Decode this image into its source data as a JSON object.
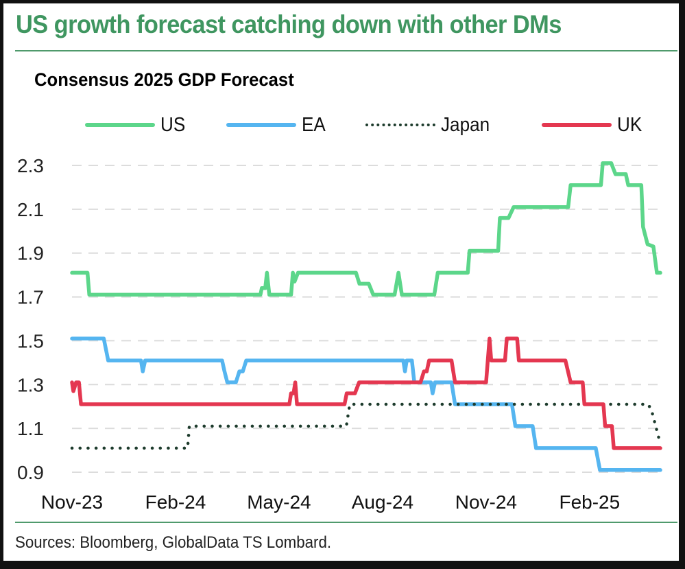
{
  "header": {
    "title": "US growth forecast catching down with other DMs",
    "subtitle": "Consensus 2025 GDP Forecast"
  },
  "footer": {
    "source": "Sources: Bloomberg, GlobalData TS Lombard."
  },
  "colors": {
    "title": "#3f9660",
    "rule": "#4f9a6c",
    "gridline": "#dcdcdc"
  },
  "chart_data": {
    "type": "line",
    "title": "Consensus 2025 GDP Forecast",
    "xlabel": "",
    "ylabel": "",
    "x_unit": "months since Nov-23",
    "xlim": [
      0,
      17.05
    ],
    "ylim": [
      0.9,
      2.3
    ],
    "yticks": [
      0.9,
      1.1,
      1.3,
      1.5,
      1.7,
      1.9,
      2.1,
      2.3
    ],
    "ytick_labels": [
      "0.9",
      "1.1",
      "1.3",
      "1.5",
      "1.7",
      "1.9",
      "2.1",
      "2.3"
    ],
    "xticks": [
      0,
      3,
      6,
      9,
      12,
      15
    ],
    "xtick_labels": [
      "Nov-23",
      "Feb-24",
      "May-24",
      "Aug-24",
      "Nov-24",
      "Feb-25"
    ],
    "grid": "horizontal-dashed",
    "legend_position": "top",
    "series": [
      {
        "name": "US",
        "color": "#5cd68a",
        "style": "solid",
        "points": [
          [
            0,
            1.81
          ],
          [
            0.45,
            1.81
          ],
          [
            0.5,
            1.71
          ],
          [
            5.46,
            1.71
          ],
          [
            5.5,
            1.74
          ],
          [
            5.6,
            1.74
          ],
          [
            5.65,
            1.81
          ],
          [
            5.72,
            1.71
          ],
          [
            6.35,
            1.71
          ],
          [
            6.4,
            1.81
          ],
          [
            6.45,
            1.77
          ],
          [
            6.55,
            1.81
          ],
          [
            8.23,
            1.81
          ],
          [
            8.33,
            1.76
          ],
          [
            8.6,
            1.76
          ],
          [
            8.73,
            1.71
          ],
          [
            9.35,
            1.71
          ],
          [
            9.46,
            1.81
          ],
          [
            9.56,
            1.71
          ],
          [
            10.5,
            1.71
          ],
          [
            10.6,
            1.81
          ],
          [
            11.47,
            1.81
          ],
          [
            11.52,
            1.91
          ],
          [
            12.35,
            1.91
          ],
          [
            12.4,
            2.06
          ],
          [
            12.65,
            2.06
          ],
          [
            12.8,
            2.11
          ],
          [
            14.38,
            2.11
          ],
          [
            14.45,
            2.21
          ],
          [
            15.33,
            2.21
          ],
          [
            15.38,
            2.31
          ],
          [
            15.63,
            2.31
          ],
          [
            15.75,
            2.26
          ],
          [
            16.05,
            2.26
          ],
          [
            16.12,
            2.21
          ],
          [
            16.5,
            2.21
          ],
          [
            16.55,
            2.02
          ],
          [
            16.68,
            1.94
          ],
          [
            16.85,
            1.93
          ],
          [
            16.95,
            1.81
          ],
          [
            17.05,
            1.81
          ]
        ]
      },
      {
        "name": "EA",
        "color": "#55b5f0",
        "style": "solid",
        "points": [
          [
            0,
            1.51
          ],
          [
            0.92,
            1.51
          ],
          [
            1.05,
            1.41
          ],
          [
            2.0,
            1.41
          ],
          [
            2.05,
            1.36
          ],
          [
            2.12,
            1.41
          ],
          [
            4.35,
            1.41
          ],
          [
            4.42,
            1.36
          ],
          [
            4.5,
            1.31
          ],
          [
            4.75,
            1.31
          ],
          [
            4.85,
            1.36
          ],
          [
            4.95,
            1.36
          ],
          [
            5.05,
            1.41
          ],
          [
            9.6,
            1.41
          ],
          [
            9.65,
            1.36
          ],
          [
            9.7,
            1.41
          ],
          [
            9.85,
            1.41
          ],
          [
            9.92,
            1.31
          ],
          [
            10.4,
            1.31
          ],
          [
            10.45,
            1.26
          ],
          [
            10.52,
            1.31
          ],
          [
            11.0,
            1.31
          ],
          [
            11.1,
            1.21
          ],
          [
            12.75,
            1.21
          ],
          [
            12.85,
            1.11
          ],
          [
            13.35,
            1.11
          ],
          [
            13.45,
            1.01
          ],
          [
            15.18,
            1.01
          ],
          [
            15.3,
            0.91
          ],
          [
            17.05,
            0.91
          ]
        ]
      },
      {
        "name": "Japan",
        "color": "#1d3b2c",
        "style": "dotted",
        "points": [
          [
            0,
            1.01
          ],
          [
            3.35,
            1.01
          ],
          [
            3.4,
            1.11
          ],
          [
            7.95,
            1.11
          ],
          [
            8.05,
            1.21
          ],
          [
            16.7,
            1.21
          ],
          [
            16.8,
            1.18
          ],
          [
            16.9,
            1.12
          ],
          [
            17.0,
            1.06
          ],
          [
            17.05,
            1.03
          ]
        ]
      },
      {
        "name": "UK",
        "color": "#e43750",
        "style": "solid",
        "points": [
          [
            0,
            1.31
          ],
          [
            0.04,
            1.27
          ],
          [
            0.12,
            1.31
          ],
          [
            0.2,
            1.31
          ],
          [
            0.26,
            1.21
          ],
          [
            6.3,
            1.21
          ],
          [
            6.35,
            1.26
          ],
          [
            6.42,
            1.26
          ],
          [
            6.47,
            1.31
          ],
          [
            6.52,
            1.21
          ],
          [
            7.9,
            1.21
          ],
          [
            7.96,
            1.26
          ],
          [
            8.2,
            1.26
          ],
          [
            8.32,
            1.31
          ],
          [
            10.1,
            1.31
          ],
          [
            10.2,
            1.36
          ],
          [
            10.28,
            1.36
          ],
          [
            10.35,
            1.41
          ],
          [
            11.0,
            1.41
          ],
          [
            11.1,
            1.31
          ],
          [
            12.0,
            1.31
          ],
          [
            12.1,
            1.51
          ],
          [
            12.15,
            1.41
          ],
          [
            12.55,
            1.41
          ],
          [
            12.6,
            1.51
          ],
          [
            12.9,
            1.51
          ],
          [
            12.95,
            1.41
          ],
          [
            14.3,
            1.41
          ],
          [
            14.45,
            1.31
          ],
          [
            14.8,
            1.31
          ],
          [
            14.85,
            1.21
          ],
          [
            15.4,
            1.21
          ],
          [
            15.45,
            1.11
          ],
          [
            15.65,
            1.11
          ],
          [
            15.7,
            1.01
          ],
          [
            17.05,
            1.01
          ]
        ]
      }
    ]
  }
}
